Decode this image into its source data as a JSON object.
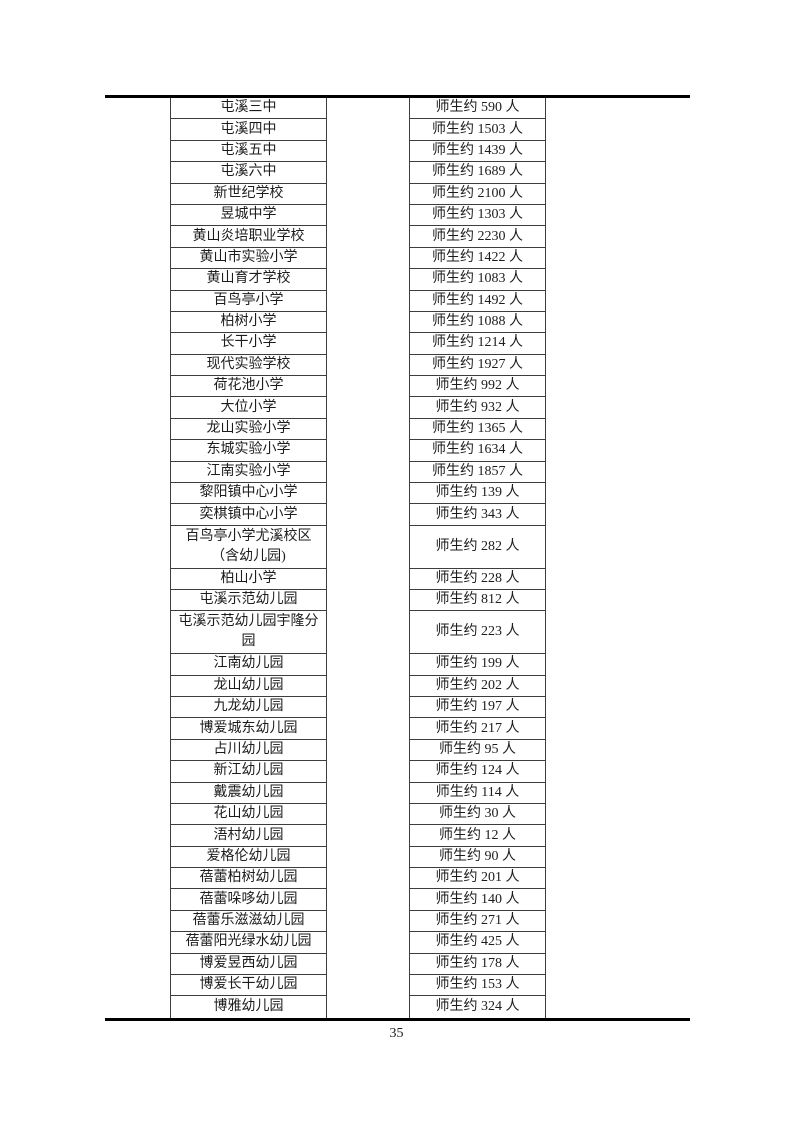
{
  "page": {
    "number": "35"
  },
  "table": {
    "rows": [
      {
        "name": "屯溪三中",
        "count": "师生约 590 人",
        "lines": 1
      },
      {
        "name": "屯溪四中",
        "count": "师生约 1503 人",
        "lines": 1
      },
      {
        "name": "屯溪五中",
        "count": "师生约 1439 人",
        "lines": 1
      },
      {
        "name": "屯溪六中",
        "count": "师生约 1689 人",
        "lines": 1
      },
      {
        "name": "新世纪学校",
        "count": "师生约 2100 人",
        "lines": 1
      },
      {
        "name": "昱城中学",
        "count": "师生约 1303 人",
        "lines": 1
      },
      {
        "name": "黄山炎培职业学校",
        "count": "师生约 2230 人",
        "lines": 1
      },
      {
        "name": "黄山市实验小学",
        "count": "师生约 1422 人",
        "lines": 1
      },
      {
        "name": "黄山育才学校",
        "count": "师生约 1083 人",
        "lines": 1
      },
      {
        "name": "百鸟亭小学",
        "count": "师生约 1492 人",
        "lines": 1
      },
      {
        "name": "柏树小学",
        "count": "师生约 1088 人",
        "lines": 1
      },
      {
        "name": "长干小学",
        "count": "师生约 1214 人",
        "lines": 1
      },
      {
        "name": "现代实验学校",
        "count": "师生约 1927 人",
        "lines": 1
      },
      {
        "name": "荷花池小学",
        "count": "师生约 992 人",
        "lines": 1
      },
      {
        "name": "大位小学",
        "count": "师生约 932 人",
        "lines": 1
      },
      {
        "name": "龙山实验小学",
        "count": "师生约 1365 人",
        "lines": 1
      },
      {
        "name": "东城实验小学",
        "count": "师生约 1634 人",
        "lines": 1
      },
      {
        "name": "江南实验小学",
        "count": "师生约 1857 人",
        "lines": 1
      },
      {
        "name": "黎阳镇中心小学",
        "count": "师生约 139 人",
        "lines": 1
      },
      {
        "name": "奕棋镇中心小学",
        "count": "师生约 343 人",
        "lines": 1
      },
      {
        "name": "百鸟亭小学尤溪校区\n（含幼儿园)",
        "count": "师生约 282 人",
        "lines": 2
      },
      {
        "name": "柏山小学",
        "count": "师生约 228 人",
        "lines": 1
      },
      {
        "name": "屯溪示范幼儿园",
        "count": "师生约 812 人",
        "lines": 1
      },
      {
        "name": "屯溪示范幼儿园宇隆分\n园",
        "count": "师生约 223 人",
        "lines": 2
      },
      {
        "name": "江南幼儿园",
        "count": "师生约 199 人",
        "lines": 1
      },
      {
        "name": "龙山幼儿园",
        "count": "师生约 202 人",
        "lines": 1
      },
      {
        "name": "九龙幼儿园",
        "count": "师生约 197 人",
        "lines": 1
      },
      {
        "name": "博爱城东幼儿园",
        "count": "师生约 217 人",
        "lines": 1
      },
      {
        "name": "占川幼儿园",
        "count": "师生约 95 人",
        "lines": 1
      },
      {
        "name": "新江幼儿园",
        "count": "师生约 124 人",
        "lines": 1
      },
      {
        "name": "戴震幼儿园",
        "count": "师生约 114 人",
        "lines": 1
      },
      {
        "name": "花山幼儿园",
        "count": "师生约 30 人",
        "lines": 1
      },
      {
        "name": "浯村幼儿园",
        "count": "师生约 12 人",
        "lines": 1
      },
      {
        "name": "爱格伦幼儿园",
        "count": "师生约 90 人",
        "lines": 1
      },
      {
        "name": "蓓蕾柏树幼儿园",
        "count": "师生约 201 人",
        "lines": 1
      },
      {
        "name": "蓓蕾哚哆幼儿园",
        "count": "师生约 140 人",
        "lines": 1
      },
      {
        "name": "蓓蕾乐滋滋幼儿园",
        "count": "师生约 271 人",
        "lines": 1
      },
      {
        "name": "蓓蕾阳光绿水幼儿园",
        "count": "师生约 425 人",
        "lines": 1
      },
      {
        "name": "博爱昱西幼儿园",
        "count": "师生约 178 人",
        "lines": 1
      },
      {
        "name": "博爱长干幼儿园",
        "count": "师生约 153 人",
        "lines": 1
      },
      {
        "name": "博雅幼儿园",
        "count": "师生约 324 人",
        "lines": 1
      }
    ]
  }
}
